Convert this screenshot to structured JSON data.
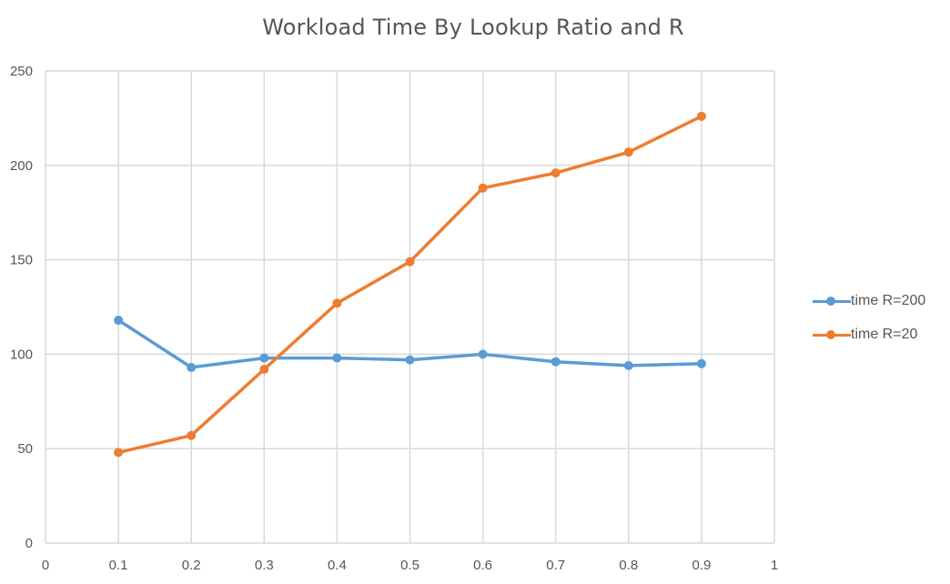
{
  "chart_data": {
    "type": "line",
    "title": "Workload Time By Lookup Ratio and R",
    "xlabel": "",
    "ylabel": "",
    "xlim": [
      0,
      1
    ],
    "ylim": [
      0,
      250
    ],
    "x_ticks": [
      "0",
      "0.1",
      "0.2",
      "0.3",
      "0.4",
      "0.5",
      "0.6",
      "0.7",
      "0.8",
      "0.9",
      "1"
    ],
    "y_ticks": [
      "0",
      "50",
      "100",
      "150",
      "200",
      "250"
    ],
    "grid": true,
    "legend_position": "right",
    "series": [
      {
        "name": "time R=200",
        "color": "#5B9BD5",
        "x": [
          0.1,
          0.2,
          0.3,
          0.4,
          0.5,
          0.6,
          0.7,
          0.8,
          0.9
        ],
        "y": [
          118,
          93,
          98,
          98,
          97,
          100,
          96,
          94,
          95
        ]
      },
      {
        "name": "time R=20",
        "color": "#ED7D31",
        "x": [
          0.1,
          0.2,
          0.3,
          0.4,
          0.5,
          0.6,
          0.7,
          0.8,
          0.9
        ],
        "y": [
          48,
          57,
          92,
          127,
          149,
          188,
          196,
          207,
          226
        ]
      }
    ]
  }
}
